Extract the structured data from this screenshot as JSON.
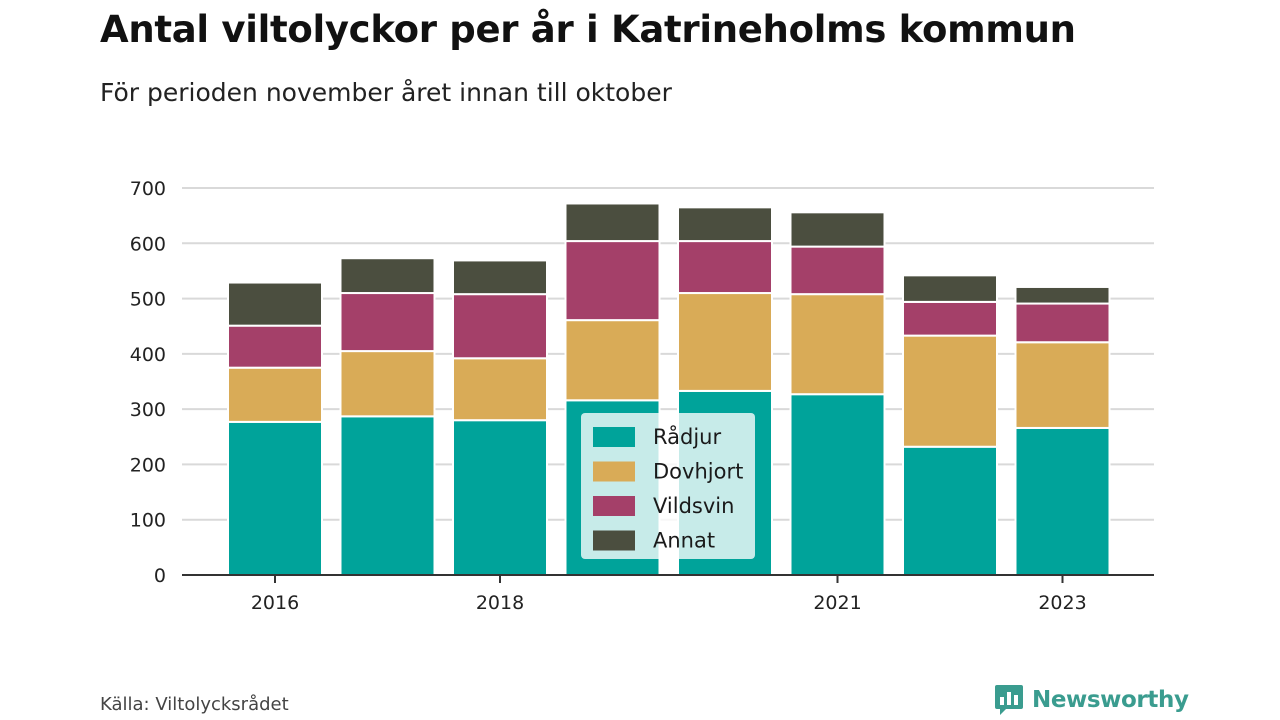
{
  "chart_data": {
    "type": "bar",
    "stacked": true,
    "title": "Antal viltolyckor per år i Katrineholms kommun",
    "subtitle": "För perioden november året innan till oktober",
    "categories": [
      "2016",
      "2017",
      "2018",
      "2019",
      "2020",
      "2021",
      "2022",
      "2023"
    ],
    "x_tick_labels": [
      "2016",
      "",
      "2018",
      "",
      "",
      "2021",
      "",
      "2023"
    ],
    "series": [
      {
        "name": "Rådjur",
        "color": "#00a39a",
        "values": [
          277,
          287,
          280,
          316,
          333,
          327,
          232,
          266
        ]
      },
      {
        "name": "Dovhjort",
        "color": "#d9ab57",
        "values": [
          98,
          118,
          112,
          145,
          177,
          181,
          201,
          155
        ]
      },
      {
        "name": "Vildsvin",
        "color": "#a44069",
        "values": [
          76,
          105,
          116,
          143,
          94,
          86,
          61,
          70
        ]
      },
      {
        "name": "Annat",
        "color": "#4b4e3f",
        "values": [
          78,
          63,
          61,
          68,
          61,
          62,
          48,
          30
        ]
      }
    ],
    "ylim": [
      0,
      700
    ],
    "y_ticks": [
      0,
      100,
      200,
      300,
      400,
      500,
      600,
      700
    ],
    "grid": true,
    "legend_position": "center-bottom"
  },
  "footer": {
    "source": "Källa: Viltolycksrådet",
    "brand": "Newsworthy"
  }
}
